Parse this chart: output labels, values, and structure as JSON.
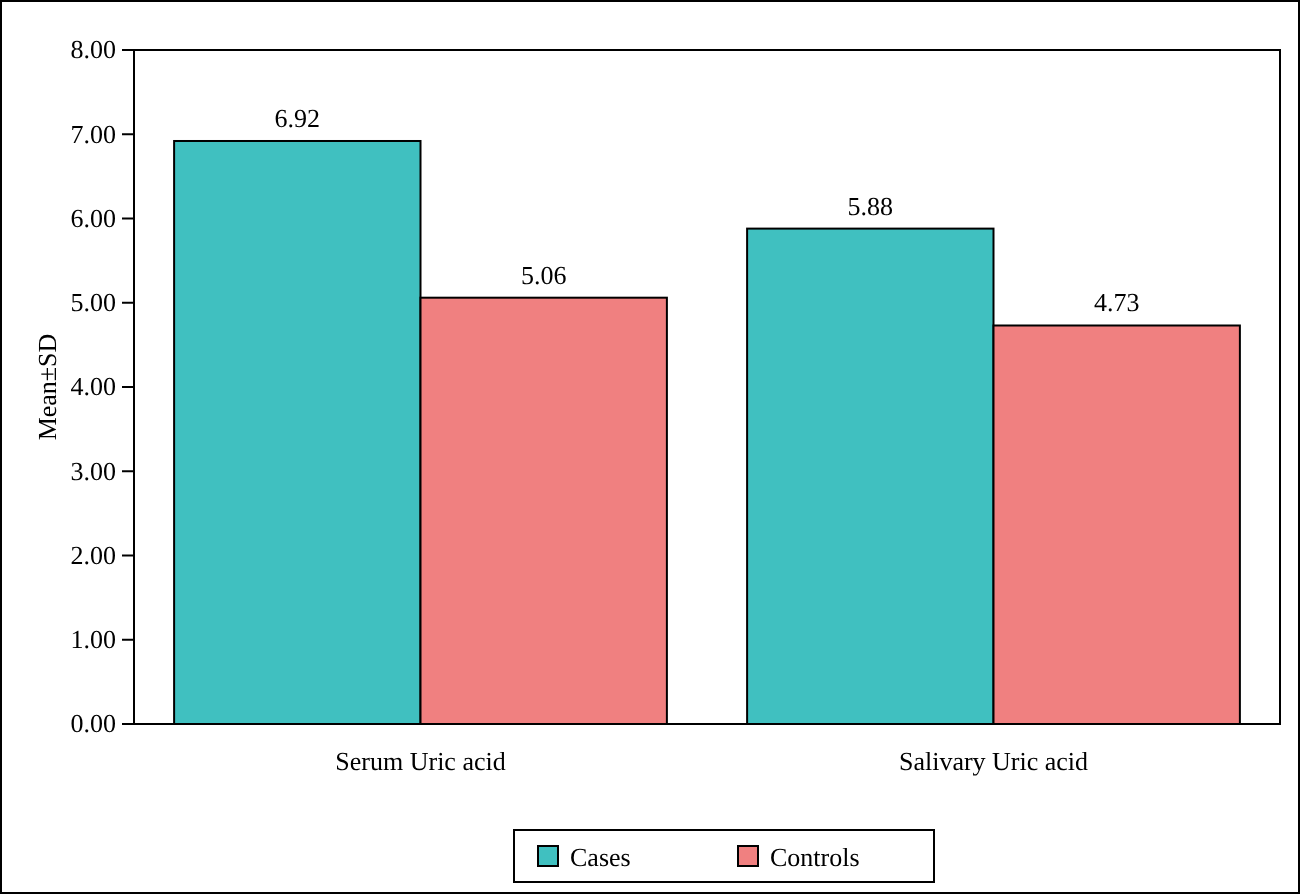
{
  "chart_data": {
    "type": "bar",
    "ylabel": "Mean±SD",
    "categories": [
      "Serum Uric acid",
      "Salivary Uric acid"
    ],
    "series": [
      {
        "name": "Cases",
        "color": "#40c0c0",
        "values": [
          6.92,
          5.88
        ]
      },
      {
        "name": "Controls",
        "color": "#f08080",
        "values": [
          5.06,
          4.73
        ]
      }
    ],
    "ylim": [
      0,
      8
    ],
    "yticks": [
      {
        "value": 0,
        "label": "0.00"
      },
      {
        "value": 1,
        "label": "1.00"
      },
      {
        "value": 2,
        "label": "2.00"
      },
      {
        "value": 3,
        "label": "3.00"
      },
      {
        "value": 4,
        "label": "4.00"
      },
      {
        "value": 5,
        "label": "5.00"
      },
      {
        "value": 6,
        "label": "6.00"
      },
      {
        "value": 7,
        "label": "7.00"
      },
      {
        "value": 8,
        "label": "8.00"
      }
    ],
    "data_labels": true,
    "legend": "bottom",
    "grid": false
  }
}
